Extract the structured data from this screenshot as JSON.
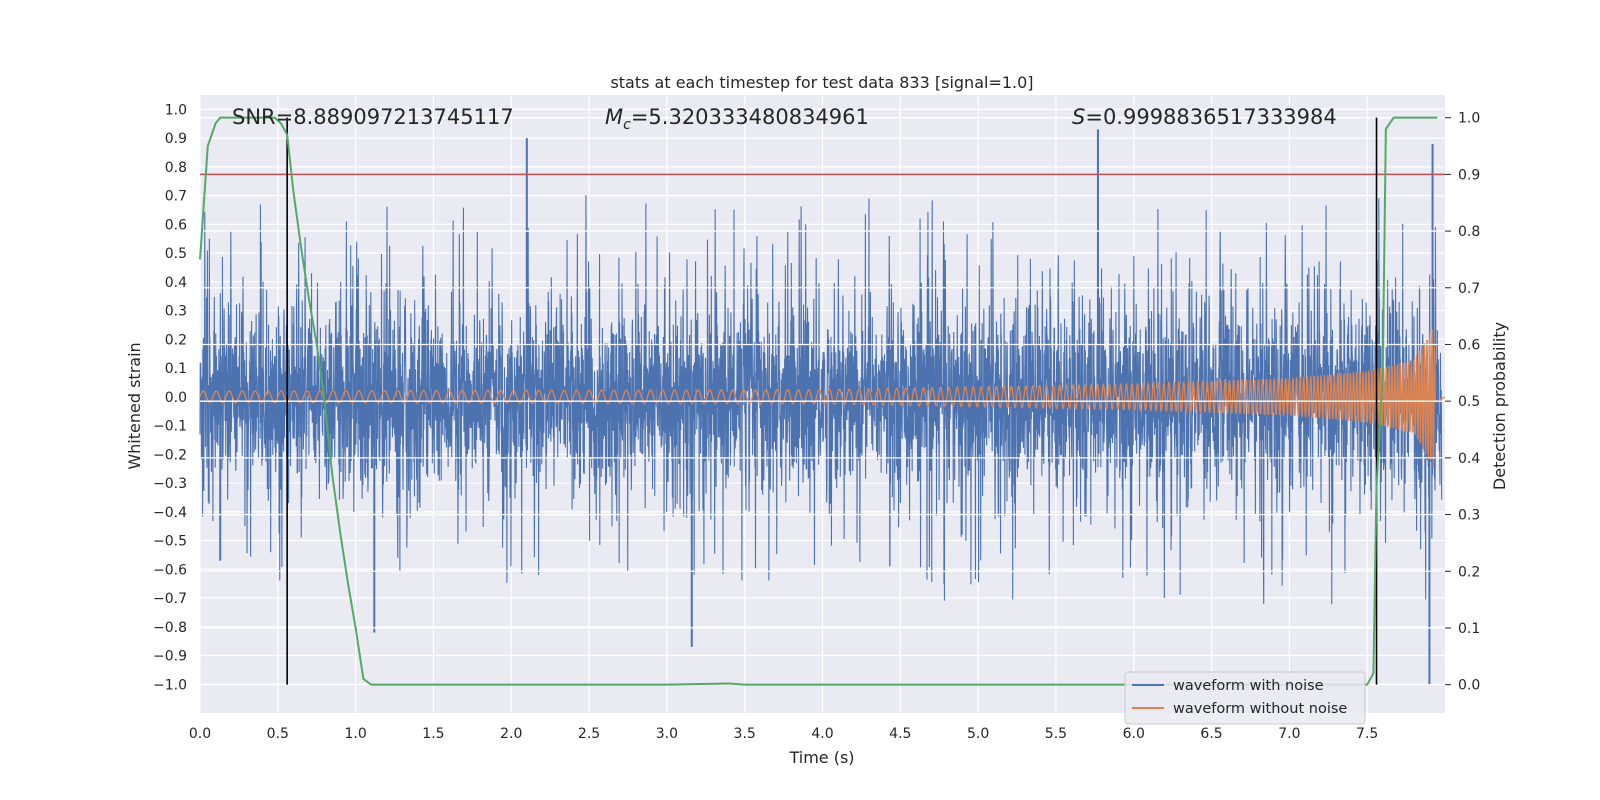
{
  "chart_data": {
    "type": "line",
    "title": "stats at each timestep for test data 833 [signal=1.0]",
    "xlabel": "Time (s)",
    "ylabel_left": "Whitened strain",
    "ylabel_right": "Detection probability",
    "xlim": [
      0.0,
      8.0
    ],
    "ylim_left": [
      -1.1,
      1.05
    ],
    "ylim_right": [
      -0.05,
      1.04
    ],
    "x_ticks": [
      0.0,
      0.5,
      1.0,
      1.5,
      2.0,
      2.5,
      3.0,
      3.5,
      4.0,
      4.5,
      5.0,
      5.5,
      6.0,
      6.5,
      7.0,
      7.5
    ],
    "x_tick_labels": [
      "0.0",
      "0.5",
      "1.0",
      "1.5",
      "2.0",
      "2.5",
      "3.0",
      "3.5",
      "4.0",
      "4.5",
      "5.0",
      "5.5",
      "6.0",
      "6.5",
      "7.0",
      "7.5"
    ],
    "left_ticks": [
      1.0,
      0.9,
      0.8,
      0.7,
      0.6,
      0.5,
      0.4,
      0.3,
      0.2,
      0.1,
      0.0,
      -0.1,
      -0.2,
      -0.3,
      -0.4,
      -0.5,
      -0.6,
      -0.7,
      -0.8,
      -0.9,
      -1.0
    ],
    "left_tick_labels": [
      "1.0",
      "0.9",
      "0.8",
      "0.7",
      "0.6",
      "0.5",
      "0.4",
      "0.3",
      "0.2",
      "0.1",
      "0.0",
      "−0.1",
      "−0.2",
      "−0.3",
      "−0.4",
      "−0.5",
      "−0.6",
      "−0.7",
      "−0.8",
      "−0.9",
      "−1.0"
    ],
    "right_ticks": [
      1.0,
      0.9,
      0.8,
      0.7,
      0.6,
      0.5,
      0.4,
      0.3,
      0.2,
      0.1,
      0.0
    ],
    "right_tick_labels": [
      "1.0",
      "0.9",
      "0.8",
      "0.7",
      "0.6",
      "0.5",
      "0.4",
      "0.3",
      "0.2",
      "0.1",
      "0.0"
    ],
    "grid": true,
    "annotations": {
      "snr": "SNR=8.889097213745117",
      "mc_symbol": "M",
      "mc_sub": "c",
      "mc_value": "=5.320333480834961",
      "s_symbol": "S",
      "s_value": "=0.9998836517333984"
    },
    "threshold_probability": 0.9,
    "vertical_markers_x": [
      0.56,
      7.56
    ],
    "legend_position": "lower right",
    "series": [
      {
        "name": "waveform with noise",
        "color": "#4c72b0",
        "axis": "left",
        "description_values": "white noise envelope approx -0.45..0.35, peaks to about 0.9 and -1.0",
        "peaks": [
          {
            "x": 2.1,
            "y": 0.9
          },
          {
            "x": 5.77,
            "y": 0.93
          },
          {
            "x": 7.92,
            "y": 0.88
          },
          {
            "x": 3.16,
            "y": -0.87
          },
          {
            "x": 7.9,
            "y": -1.0
          },
          {
            "x": 0.13,
            "y": -0.57
          },
          {
            "x": 1.12,
            "y": -0.82
          }
        ]
      },
      {
        "name": "waveform without noise",
        "color": "#dd8452",
        "axis": "left",
        "amplitude_points": [
          {
            "x": 0.0,
            "y": 0.02
          },
          {
            "x": 4.0,
            "y": 0.025
          },
          {
            "x": 6.0,
            "y": 0.045
          },
          {
            "x": 7.0,
            "y": 0.065
          },
          {
            "x": 7.5,
            "y": 0.09
          },
          {
            "x": 7.8,
            "y": 0.13
          },
          {
            "x": 7.93,
            "y": 0.25
          },
          {
            "x": 7.94,
            "y": 0.0
          }
        ]
      },
      {
        "name": "detection probability",
        "color": "#55a868",
        "axis": "right",
        "x": [
          0.0,
          0.05,
          0.1,
          0.13,
          0.2,
          0.3,
          0.4,
          0.48,
          0.52,
          0.56,
          0.6,
          0.65,
          0.7,
          0.75,
          0.8,
          0.85,
          0.9,
          0.95,
          1.0,
          1.05,
          1.1,
          1.2,
          2.0,
          3.0,
          3.4,
          3.5,
          4.0,
          5.0,
          6.0,
          7.0,
          7.5,
          7.54,
          7.56,
          7.6,
          7.62,
          7.67,
          7.7,
          7.95
        ],
        "y": [
          0.75,
          0.95,
          0.99,
          1.0,
          1.0,
          1.0,
          1.0,
          1.0,
          0.99,
          0.97,
          0.87,
          0.77,
          0.68,
          0.6,
          0.5,
          0.37,
          0.27,
          0.18,
          0.1,
          0.01,
          0.0,
          0.0,
          0.0,
          0.0,
          0.002,
          0.0,
          0.0,
          0.0,
          0.0,
          0.0,
          0.0,
          0.02,
          0.35,
          0.55,
          0.98,
          1.0,
          1.0,
          1.0
        ]
      },
      {
        "name": "threshold",
        "color": "#c44e52",
        "axis": "right",
        "x": [
          0.0,
          8.0
        ],
        "y": [
          0.9,
          0.9
        ]
      }
    ]
  },
  "legend": {
    "items": [
      {
        "label": "waveform with noise",
        "color": "#4c72b0"
      },
      {
        "label": "waveform without noise",
        "color": "#dd8452"
      }
    ]
  }
}
